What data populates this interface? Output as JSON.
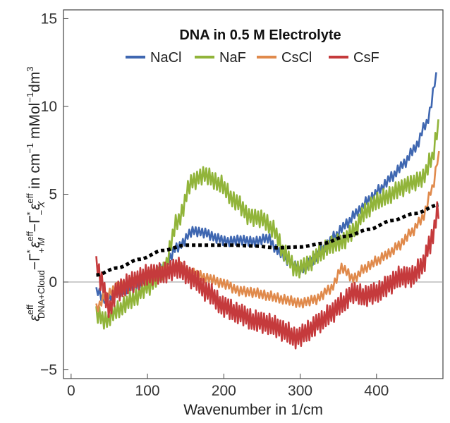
{
  "chart_data": {
    "type": "line",
    "title": "DNA in 0.5 M Electrolyte",
    "xlabel": "Wavenumber in 1/cm",
    "ylabel_parts": {
      "epsilon": "ε",
      "eff": "eff",
      "dna_cloud": "DNA+Cloud",
      "minus": "−",
      "gamma": "Γ",
      "star": "*",
      "plus": "+",
      "m": "M",
      "x": "X",
      "units_main": " in cm",
      "units_minus1": "−1",
      "units_mmol": " mMol",
      "units_dm": "dm",
      "units_3": "3"
    },
    "xlim": [
      -10,
      487
    ],
    "ylim": [
      -5.5,
      15.5
    ],
    "xticks": [
      0,
      100,
      200,
      300,
      400
    ],
    "yticks": [
      -5,
      0,
      5,
      10,
      15
    ],
    "xtick_labels": [
      "0",
      "100",
      "200",
      "300",
      "400"
    ],
    "ytick_labels": [
      "−5",
      "0",
      "5",
      "10",
      "15"
    ],
    "zero_line": true,
    "legend_position": "top-center",
    "series": [
      {
        "name": "NaCl",
        "color": "#3f67b1",
        "noise": 0.55,
        "period": 4.2,
        "points": [
          [
            33,
            -0.5
          ],
          [
            45,
            -1.0
          ],
          [
            60,
            -0.6
          ],
          [
            80,
            -0.3
          ],
          [
            100,
            0.2
          ],
          [
            120,
            0.8
          ],
          [
            140,
            2.0
          ],
          [
            160,
            2.9
          ],
          [
            175,
            2.8
          ],
          [
            190,
            2.5
          ],
          [
            205,
            2.3
          ],
          [
            220,
            2.4
          ],
          [
            240,
            2.3
          ],
          [
            258,
            2.5
          ],
          [
            270,
            1.8
          ],
          [
            285,
            1.2
          ],
          [
            300,
            0.7
          ],
          [
            315,
            1.2
          ],
          [
            330,
            1.9
          ],
          [
            345,
            2.6
          ],
          [
            360,
            3.3
          ],
          [
            375,
            4.0
          ],
          [
            390,
            4.7
          ],
          [
            405,
            5.3
          ],
          [
            420,
            6.0
          ],
          [
            435,
            6.7
          ],
          [
            450,
            7.6
          ],
          [
            465,
            9.0
          ],
          [
            480,
            11.8
          ]
        ]
      },
      {
        "name": "NaF",
        "color": "#91b43a",
        "noise": 1.0,
        "period": 4.0,
        "points": [
          [
            33,
            -1.8
          ],
          [
            45,
            -2.2
          ],
          [
            60,
            -1.6
          ],
          [
            80,
            -1.0
          ],
          [
            100,
            -0.3
          ],
          [
            120,
            0.6
          ],
          [
            140,
            3.5
          ],
          [
            158,
            5.7
          ],
          [
            175,
            6.1
          ],
          [
            195,
            5.6
          ],
          [
            215,
            4.6
          ],
          [
            235,
            3.7
          ],
          [
            250,
            3.6
          ],
          [
            265,
            3.0
          ],
          [
            280,
            1.6
          ],
          [
            295,
            0.7
          ],
          [
            310,
            1.0
          ],
          [
            325,
            1.6
          ],
          [
            340,
            2.1
          ],
          [
            355,
            2.3
          ],
          [
            370,
            2.9
          ],
          [
            385,
            4.0
          ],
          [
            400,
            4.6
          ],
          [
            415,
            4.9
          ],
          [
            430,
            5.3
          ],
          [
            445,
            5.6
          ],
          [
            460,
            5.9
          ],
          [
            472,
            7.0
          ],
          [
            482,
            9.0
          ]
        ]
      },
      {
        "name": "CsCl",
        "color": "#e08a4c",
        "noise": 0.55,
        "period": 4.4,
        "points": [
          [
            33,
            -1.5
          ],
          [
            45,
            -0.8
          ],
          [
            60,
            -0.3
          ],
          [
            80,
            0.0
          ],
          [
            100,
            0.4
          ],
          [
            120,
            0.6
          ],
          [
            140,
            0.9
          ],
          [
            160,
            0.5
          ],
          [
            180,
            0.2
          ],
          [
            200,
            -0.1
          ],
          [
            220,
            -0.5
          ],
          [
            240,
            -0.6
          ],
          [
            260,
            -0.8
          ],
          [
            280,
            -1.0
          ],
          [
            300,
            -1.2
          ],
          [
            320,
            -1.0
          ],
          [
            340,
            -0.4
          ],
          [
            355,
            0.8
          ],
          [
            370,
            0.2
          ],
          [
            385,
            0.8
          ],
          [
            400,
            1.2
          ],
          [
            415,
            1.6
          ],
          [
            430,
            2.1
          ],
          [
            445,
            2.8
          ],
          [
            460,
            3.6
          ],
          [
            472,
            5.2
          ],
          [
            482,
            7.2
          ]
        ]
      },
      {
        "name": "CsF",
        "color": "#c53a3c",
        "noise": 1.2,
        "period": 3.6,
        "points": [
          [
            33,
            1.0
          ],
          [
            40,
            0.0
          ],
          [
            50,
            -1.5
          ],
          [
            60,
            -0.5
          ],
          [
            80,
            0.0
          ],
          [
            100,
            0.4
          ],
          [
            120,
            0.5
          ],
          [
            140,
            0.8
          ],
          [
            160,
            0.2
          ],
          [
            180,
            -0.6
          ],
          [
            200,
            -1.4
          ],
          [
            220,
            -1.8
          ],
          [
            240,
            -2.2
          ],
          [
            260,
            -2.4
          ],
          [
            280,
            -2.8
          ],
          [
            295,
            -3.2
          ],
          [
            310,
            -2.8
          ],
          [
            325,
            -2.3
          ],
          [
            340,
            -1.8
          ],
          [
            355,
            -1.2
          ],
          [
            370,
            -0.6
          ],
          [
            385,
            -0.8
          ],
          [
            400,
            -0.6
          ],
          [
            415,
            -0.2
          ],
          [
            430,
            0.3
          ],
          [
            445,
            0.3
          ],
          [
            460,
            0.9
          ],
          [
            470,
            2.2
          ],
          [
            482,
            4.2
          ]
        ]
      },
      {
        "name": "",
        "color": "#000000",
        "dashed": true,
        "points": [
          [
            33,
            0.4
          ],
          [
            60,
            0.8
          ],
          [
            90,
            1.3
          ],
          [
            120,
            1.8
          ],
          [
            150,
            2.1
          ],
          [
            180,
            2.1
          ],
          [
            210,
            2.1
          ],
          [
            240,
            2.05
          ],
          [
            270,
            1.95
          ],
          [
            300,
            2.0
          ],
          [
            330,
            2.2
          ],
          [
            360,
            2.6
          ],
          [
            390,
            3.0
          ],
          [
            420,
            3.5
          ],
          [
            450,
            3.9
          ],
          [
            482,
            4.4
          ]
        ]
      }
    ]
  }
}
